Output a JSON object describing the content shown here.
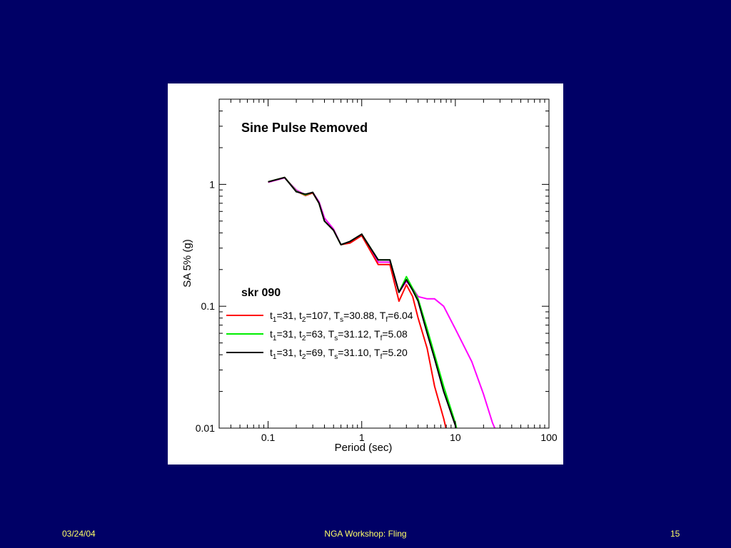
{
  "footer": {
    "date": "03/24/04",
    "title": "NGA Workshop: Fling",
    "page": "15"
  },
  "chart_data": {
    "type": "line",
    "title": "Sine Pulse Removed",
    "subtitle": "skr 090",
    "xlabel": "Period (sec)",
    "ylabel": "SA 5% (g)",
    "xscale": "log",
    "yscale": "log",
    "xlim": [
      0.03,
      100
    ],
    "ylim": [
      0.01,
      5
    ],
    "xticks": [
      {
        "value": 0.1,
        "label": "0.1"
      },
      {
        "value": 1,
        "label": "1"
      },
      {
        "value": 10,
        "label": "10"
      },
      {
        "value": 100,
        "label": "100"
      }
    ],
    "yticks": [
      {
        "value": 0.01,
        "label": "0.01"
      },
      {
        "value": 0.1,
        "label": "0.1"
      },
      {
        "value": 1,
        "label": "1"
      }
    ],
    "grid": false,
    "legend_position": "middle-left",
    "series": [
      {
        "name": "",
        "color": "#ff00ff",
        "x": [
          0.1,
          0.15,
          0.2,
          0.25,
          0.3,
          0.35,
          0.4,
          0.5,
          0.6,
          0.75,
          1.0,
          1.5,
          2.0,
          2.5,
          3.0,
          3.5,
          4.0,
          5.0,
          6.0,
          7.5,
          10,
          15,
          20,
          25,
          30
        ],
        "y": [
          1.04,
          1.13,
          0.9,
          0.82,
          0.86,
          0.72,
          0.53,
          0.43,
          0.32,
          0.34,
          0.39,
          0.23,
          0.23,
          0.13,
          0.16,
          0.14,
          0.12,
          0.115,
          0.115,
          0.1,
          0.065,
          0.035,
          0.019,
          0.011,
          0.008
        ]
      },
      {
        "name": "t1=31, t2=107, Ts=30.88, Tf=6.04",
        "label_text": {
          "t1": "31",
          "t2": "107",
          "Ts": "30.88",
          "Tf": "6.04"
        },
        "color": "#ff0000",
        "x": [
          0.1,
          0.15,
          0.2,
          0.25,
          0.3,
          0.35,
          0.4,
          0.5,
          0.6,
          0.75,
          1.0,
          1.5,
          2.0,
          2.5,
          3.0,
          3.5,
          4.0,
          5.0,
          6.0,
          7.5,
          8.5
        ],
        "y": [
          1.05,
          1.14,
          0.88,
          0.81,
          0.85,
          0.7,
          0.5,
          0.42,
          0.32,
          0.33,
          0.38,
          0.22,
          0.22,
          0.11,
          0.15,
          0.12,
          0.08,
          0.045,
          0.022,
          0.012,
          0.008
        ]
      },
      {
        "name": "t1=31, t2=63, Ts=31.12, Tf=5.08",
        "label_text": {
          "t1": "31",
          "t2": "63",
          "Ts": "31.12",
          "Tf": "5.08"
        },
        "color": "#00ee00",
        "x": [
          0.1,
          0.15,
          0.2,
          0.25,
          0.3,
          0.35,
          0.4,
          0.5,
          0.6,
          0.75,
          1.0,
          1.5,
          2.0,
          2.5,
          3.0,
          3.5,
          4.0,
          5.0,
          6.0,
          7.5,
          10,
          11
        ],
        "y": [
          1.05,
          1.14,
          0.88,
          0.82,
          0.86,
          0.7,
          0.5,
          0.42,
          0.32,
          0.34,
          0.39,
          0.24,
          0.24,
          0.13,
          0.175,
          0.14,
          0.115,
          0.065,
          0.04,
          0.022,
          0.011,
          0.008
        ]
      },
      {
        "name": "t1=31, t2=69, Ts=31.10, Tf=5.20",
        "label_text": {
          "t1": "31",
          "t2": "69",
          "Ts": "31.10",
          "Tf": "5.20"
        },
        "color": "#000000",
        "x": [
          0.1,
          0.15,
          0.2,
          0.25,
          0.3,
          0.35,
          0.4,
          0.5,
          0.6,
          0.75,
          1.0,
          1.5,
          2.0,
          2.5,
          3.0,
          3.5,
          4.0,
          5.0,
          6.0,
          7.5,
          10,
          10.5
        ],
        "y": [
          1.05,
          1.14,
          0.87,
          0.83,
          0.86,
          0.7,
          0.5,
          0.42,
          0.32,
          0.34,
          0.39,
          0.24,
          0.24,
          0.13,
          0.165,
          0.135,
          0.11,
          0.06,
          0.037,
          0.02,
          0.0105,
          0.008
        ]
      }
    ]
  }
}
